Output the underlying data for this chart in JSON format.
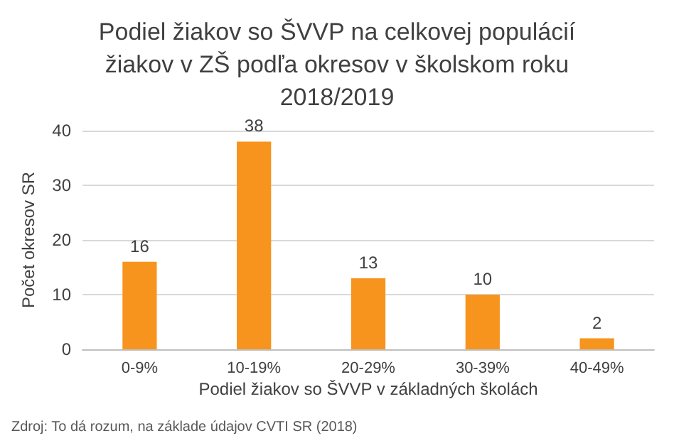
{
  "chart_data": {
    "type": "bar",
    "title": "Podiel žiakov so ŠVVP na celkovej populácií\nžiakov v ZŠ podľa okresov v školskom roku\n2018/2019",
    "categories": [
      "0-9%",
      "10-19%",
      "20-29%",
      "30-39%",
      "40-49%"
    ],
    "values": [
      16,
      38,
      13,
      10,
      2
    ],
    "color": "#f7941d",
    "xlabel": "Podiel žiakov so ŠVVP v základných školách",
    "ylabel": "Počet okresov SR",
    "ylim": [
      0,
      40
    ],
    "yticks": [
      0,
      10,
      20,
      30,
      40
    ],
    "grid": "y",
    "data_labels": true,
    "annotations": [
      "Zdroj: To dá rozum, na základe údajov CVTI SR (2018)"
    ]
  }
}
